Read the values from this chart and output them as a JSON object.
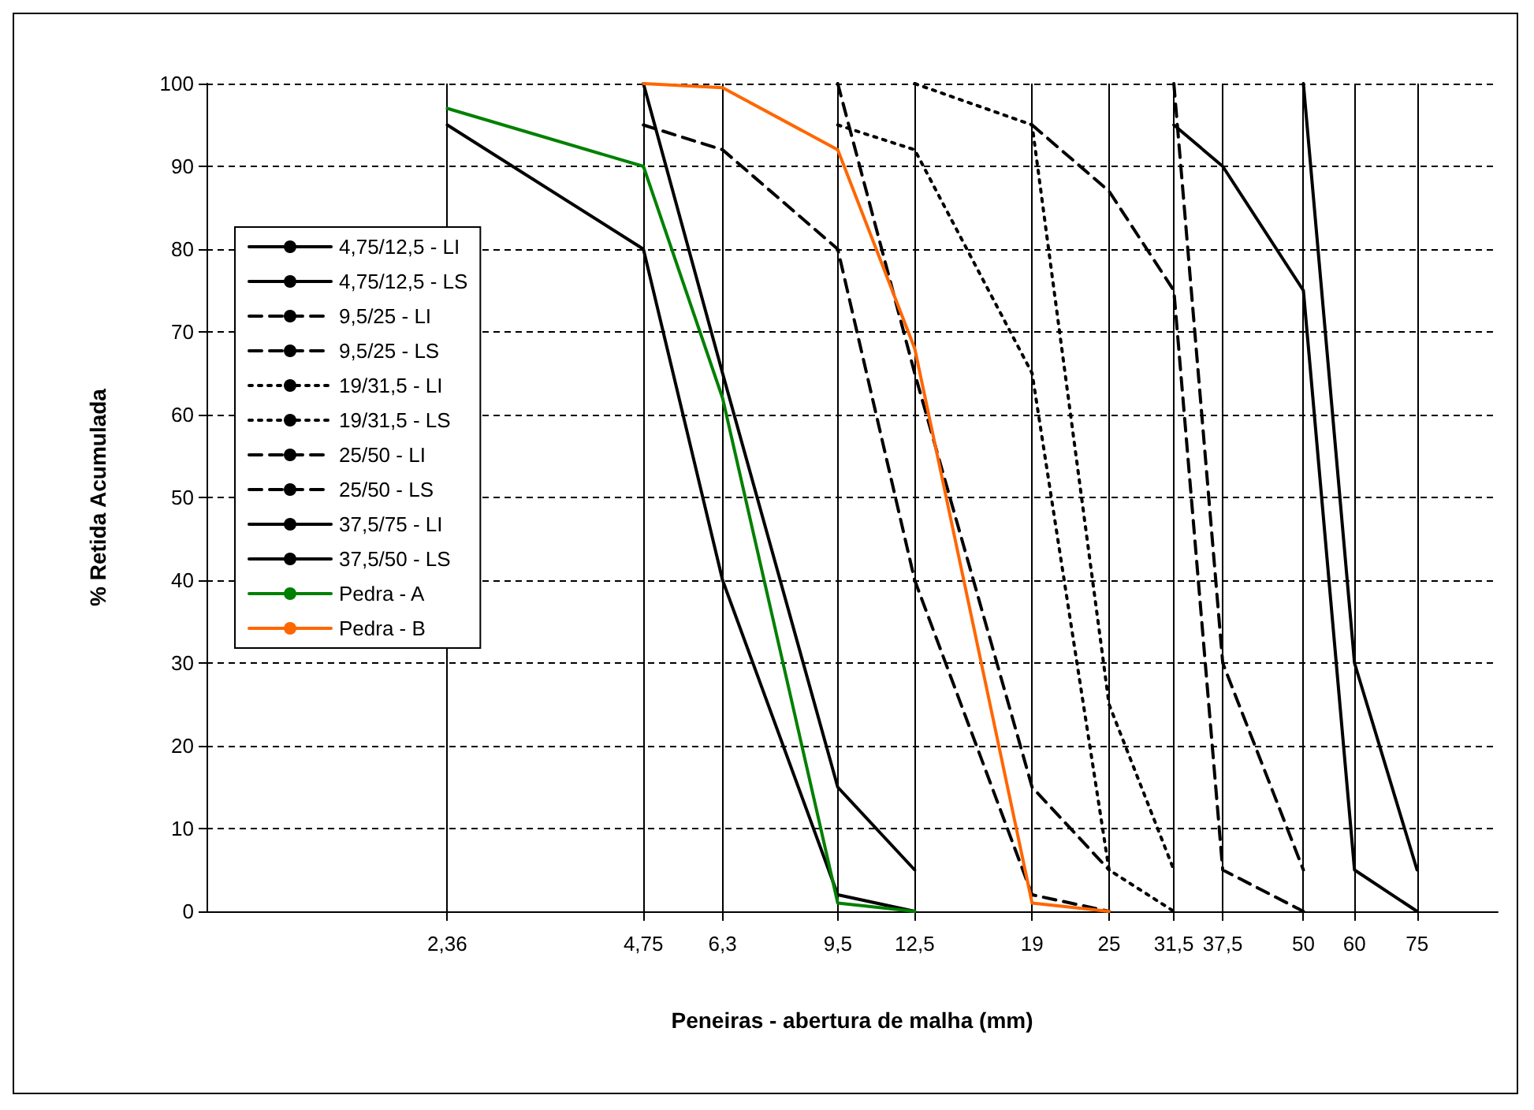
{
  "chart_data": {
    "type": "line",
    "xlabel": "Peneiras - abertura de malha (mm)",
    "ylabel": "% Retida Acumulada",
    "log": "x",
    "xlim": [
      1,
      100
    ],
    "xticks": [
      {
        "value": 2.36,
        "label": "2,36"
      },
      {
        "value": 4.75,
        "label": "4,75"
      },
      {
        "value": 6.3,
        "label": "6,3"
      },
      {
        "value": 9.5,
        "label": "9,5"
      },
      {
        "value": 12.5,
        "label": "12,5"
      },
      19,
      25,
      {
        "value": 31.5,
        "label": "31,5"
      },
      {
        "value": 37.5,
        "label": "37,5"
      },
      50,
      60,
      75
    ],
    "ylim": [
      0,
      100
    ],
    "yticks": [
      0,
      10,
      20,
      30,
      40,
      50,
      60,
      70,
      80,
      90,
      100
    ],
    "grid": true,
    "legend": "left",
    "marker": "none",
    "series": [
      {
        "name": "4,75/12,5 - LI",
        "color": "#000000",
        "line_style": "solid",
        "x": [
          2.36,
          4.75,
          6.3,
          9.5,
          12.5
        ],
        "values": [
          95,
          80,
          40,
          2,
          0
        ]
      },
      {
        "name": "4,75/12,5 - LS",
        "color": "#000000",
        "line_style": "solid",
        "x": [
          4.75,
          6.3,
          9.5,
          12.5
        ],
        "values": [
          100,
          65,
          15,
          5
        ]
      },
      {
        "name": "9,5/25 - LI",
        "color": "#000000",
        "line_style": "dashed",
        "x": [
          4.75,
          6.3,
          9.5,
          12.5,
          19,
          25
        ],
        "values": [
          95,
          92,
          80,
          40,
          2,
          0
        ]
      },
      {
        "name": "9,5/25 - LS",
        "color": "#000000",
        "line_style": "dashed",
        "x": [
          9.5,
          12.5,
          19,
          25
        ],
        "values": [
          100,
          65,
          15,
          5
        ]
      },
      {
        "name": "19/31,5 - LI",
        "color": "#000000",
        "line_style": "dotted",
        "x": [
          9.5,
          12.5,
          19,
          25,
          31.5
        ],
        "values": [
          95,
          92,
          65,
          5,
          0
        ]
      },
      {
        "name": "19/31,5 - LS",
        "color": "#000000",
        "line_style": "dotted",
        "x": [
          12.5,
          19,
          25,
          31.5
        ],
        "values": [
          100,
          95,
          25,
          5
        ]
      },
      {
        "name": "25/50 - LI",
        "color": "#000000",
        "line_style": "dashed",
        "x": [
          19,
          25,
          31.5,
          37.5,
          50
        ],
        "values": [
          95,
          87,
          75,
          5,
          0
        ]
      },
      {
        "name": "25/50 - LS",
        "color": "#000000",
        "line_style": "dashed",
        "x": [
          31.5,
          37.5,
          50
        ],
        "values": [
          100,
          30,
          5
        ]
      },
      {
        "name": "37,5/75 - LI",
        "color": "#000000",
        "line_style": "solid",
        "x": [
          31.5,
          37.5,
          50,
          60,
          75
        ],
        "values": [
          95,
          90,
          75,
          5,
          0
        ]
      },
      {
        "name": "37,5/50 - LS",
        "color": "#000000",
        "line_style": "solid",
        "x": [
          50,
          60,
          75
        ],
        "values": [
          100,
          30,
          5
        ]
      },
      {
        "name": "Pedra - A",
        "color": "#008000",
        "line_style": "solid",
        "x": [
          2.36,
          4.75,
          6.3,
          9.5,
          12.5
        ],
        "values": [
          97,
          90,
          62,
          1,
          0
        ]
      },
      {
        "name": "Pedra - B",
        "color": "#ff6600",
        "line_style": "solid",
        "x": [
          4.75,
          6.3,
          9.5,
          12.5,
          19,
          25
        ],
        "values": [
          100,
          99.5,
          92,
          68,
          1,
          0
        ]
      }
    ]
  }
}
